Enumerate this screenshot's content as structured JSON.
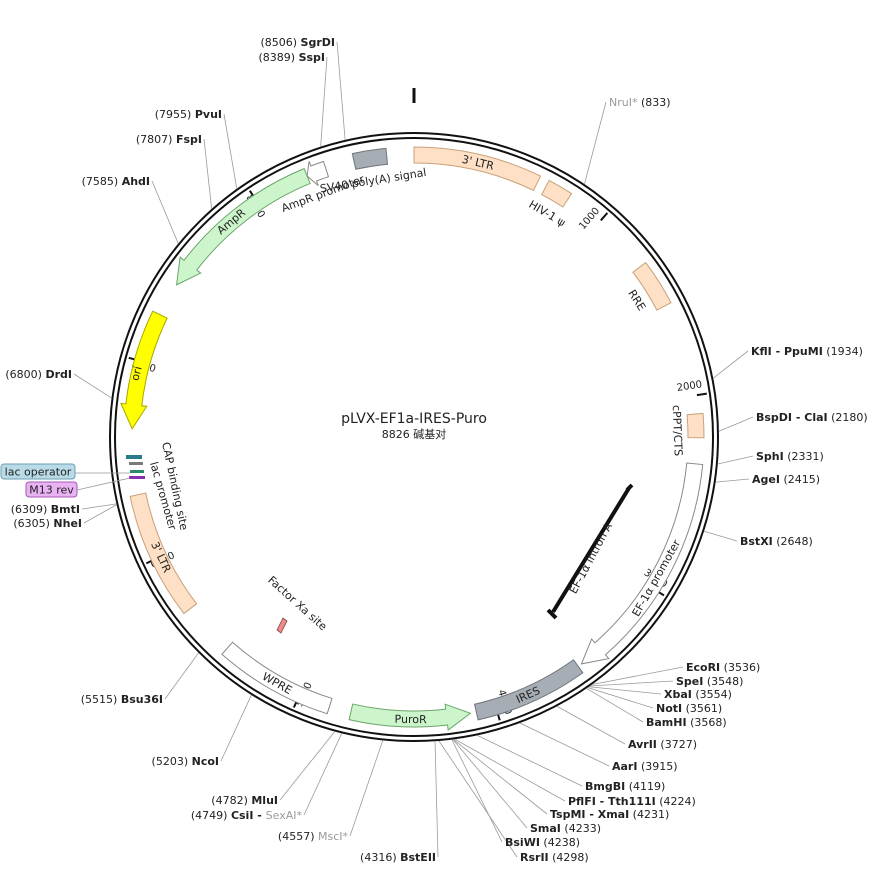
{
  "plasmid": {
    "name": "pLVX-EF1a-IRES-Puro",
    "length_label": "8826 碱基对",
    "length": 8826
  },
  "scale_ticks": [
    {
      "label": "1000",
      "pos": 1000
    },
    {
      "label": "2000",
      "pos": 2000
    },
    {
      "label": "3000",
      "pos": 3000
    },
    {
      "label": "4000",
      "pos": 4000
    },
    {
      "label": "5000",
      "pos": 5000
    },
    {
      "label": "6000",
      "pos": 6000
    },
    {
      "label": "7000",
      "pos": 7000
    },
    {
      "label": "8000",
      "pos": 8000
    }
  ],
  "features": [
    {
      "label": "3' LTR",
      "start": 0,
      "end": 634,
      "type": "box",
      "color": "#fde0c5",
      "stroke": "#c9a07a"
    },
    {
      "label": "HIV-1 ψ",
      "start": 681,
      "end": 807,
      "type": "box",
      "color": "#fde0c5",
      "stroke": "#c9a07a"
    },
    {
      "label": "RRE",
      "start": 1300,
      "end": 1530,
      "type": "box",
      "color": "#fde0c5",
      "stroke": "#c9a07a"
    },
    {
      "label": "cPPT/CTS",
      "start": 2092,
      "end": 2210,
      "type": "box",
      "color": "#fde0c5",
      "stroke": "#c9a07a"
    },
    {
      "label": "EF-1α promoter",
      "start": 2340,
      "end": 3520,
      "type": "arrow",
      "dir": 1,
      "color": "#ffffff",
      "stroke": "#888888"
    },
    {
      "label": "IRES",
      "start": 3540,
      "end": 4100,
      "type": "box",
      "color": "#a6adb4",
      "stroke": "#6e757b"
    },
    {
      "label": "PuroR",
      "start": 4130,
      "end": 4730,
      "type": "arrow",
      "dir": -1,
      "color": "#ccf5cc",
      "stroke": "#6aa56a"
    },
    {
      "label": "WPRE",
      "start": 4840,
      "end": 5430,
      "type": "box",
      "color": "#ffffff",
      "stroke": "#888888"
    },
    {
      "label": "3' LTR",
      "start": 5700,
      "end": 6330,
      "type": "box",
      "color": "#fde0c5",
      "stroke": "#c9a07a"
    },
    {
      "label": "ori",
      "start": 6660,
      "end": 7250,
      "type": "arrow",
      "dir": -1,
      "color": "#ffff00",
      "stroke": "#a8a800"
    },
    {
      "label": "AmpR",
      "start": 7420,
      "end": 8280,
      "type": "arrow",
      "dir": -1,
      "color": "#ccf5cc",
      "stroke": "#6aa56a"
    },
    {
      "label": "AmpR promoter",
      "start": 8280,
      "end": 8380,
      "type": "arrow",
      "dir": -1,
      "color": "#ffffff",
      "stroke": "#888888"
    },
    {
      "label": "SV40 poly(A) signal",
      "start": 8525,
      "end": 8690,
      "type": "box",
      "color": "#a6adb4",
      "stroke": "#6e757b"
    }
  ],
  "inner_labels": [
    {
      "text": "EF-1α intron A"
    },
    {
      "text": "Factor Xa site"
    },
    {
      "text": "CAP binding site"
    },
    {
      "text": "lac promoter"
    },
    {
      "text": "lac operator"
    },
    {
      "text": "M13 rev"
    }
  ],
  "sites": [
    {
      "name": "SgrDI",
      "pos": "8506",
      "gray": false
    },
    {
      "name": "SspI",
      "pos": "8389",
      "gray": false
    },
    {
      "name": "PvuI",
      "pos": "7955",
      "gray": false
    },
    {
      "name": "FspI",
      "pos": "7807",
      "gray": false
    },
    {
      "name": "AhdI",
      "pos": "7585",
      "gray": false
    },
    {
      "name": "DrdI",
      "pos": "6800",
      "gray": false
    },
    {
      "name": "BmtI",
      "pos": "6309",
      "gray": false
    },
    {
      "name": "NheI",
      "pos": "6305",
      "gray": false
    },
    {
      "name": "Bsu36I",
      "pos": "5515",
      "gray": false
    },
    {
      "name": "NcoI",
      "pos": "5203",
      "gray": false
    },
    {
      "name": "MluI",
      "pos": "4782",
      "gray": false
    },
    {
      "name": "CsiI - ",
      "name2": "SexAI*",
      "pos": "4749",
      "gray": false
    },
    {
      "name": "MscI*",
      "pos": "4557",
      "gray": true
    },
    {
      "name": "BstEII",
      "pos": "4316",
      "gray": false
    },
    {
      "name": "RsrII",
      "pos": "4298",
      "gray": false
    },
    {
      "name": "BsiWI",
      "pos": "4238",
      "gray": false
    },
    {
      "name": "SmaI",
      "pos": "4233",
      "gray": false
    },
    {
      "name": "TspMI - XmaI",
      "pos": "4231",
      "gray": false
    },
    {
      "name": "PflFI - Tth111I",
      "pos": "4224",
      "gray": false
    },
    {
      "name": "BmgBI",
      "pos": "4119",
      "gray": false
    },
    {
      "name": "AarI",
      "pos": "3915",
      "gray": false
    },
    {
      "name": "AvrII",
      "pos": "3727",
      "gray": false
    },
    {
      "name": "BamHI",
      "pos": "3568",
      "gray": false
    },
    {
      "name": "NotI",
      "pos": "3561",
      "gray": false
    },
    {
      "name": "XbaI",
      "pos": "3554",
      "gray": false
    },
    {
      "name": "SpeI",
      "pos": "3548",
      "gray": false
    },
    {
      "name": "EcoRI",
      "pos": "3536",
      "gray": false
    },
    {
      "name": "BstXI",
      "pos": "2648",
      "gray": false
    },
    {
      "name": "AgeI",
      "pos": "2415",
      "gray": false
    },
    {
      "name": "SphI",
      "pos": "2331",
      "gray": false
    },
    {
      "name": "BspDI - ClaI",
      "pos": "2180",
      "gray": false
    },
    {
      "name": "KflI - PpuMI",
      "pos": "1934",
      "gray": false
    },
    {
      "name": "NruI*",
      "pos": "833",
      "gray": true
    }
  ]
}
